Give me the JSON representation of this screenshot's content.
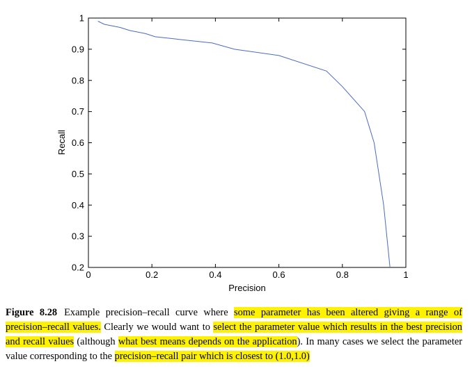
{
  "chart_data": {
    "type": "line",
    "xlabel": "Precision",
    "ylabel": "Recall",
    "xlim": [
      0,
      1
    ],
    "ylim": [
      0.2,
      1
    ],
    "x_ticks": [
      "0",
      "0.2",
      "0.4",
      "0.6",
      "0.8",
      "1"
    ],
    "y_ticks": [
      "0.2",
      "0.3",
      "0.4",
      "0.5",
      "0.6",
      "0.7",
      "0.8",
      "0.9",
      "1"
    ],
    "grid": false,
    "line_color": "#4a6bbf",
    "series": [
      {
        "x": [
          0.03,
          0.05,
          0.1,
          0.13,
          0.18,
          0.21,
          0.39,
          0.46,
          0.6,
          0.75,
          0.8,
          0.87,
          0.9,
          0.93,
          0.95
        ],
        "y": [
          0.99,
          0.98,
          0.97,
          0.96,
          0.95,
          0.94,
          0.92,
          0.9,
          0.88,
          0.83,
          0.78,
          0.7,
          0.6,
          0.4,
          0.2
        ]
      }
    ]
  },
  "caption": {
    "label": "Figure 8.28",
    "parts": [
      {
        "text": "Example precision–recall curve where ",
        "hl": false
      },
      {
        "text": "some parameter has been altered giving a range of precision–recall values.",
        "hl": true
      },
      {
        "text": " Clearly we would want to ",
        "hl": false
      },
      {
        "text": "select the parameter value which results in the best precision and recall values",
        "hl": true
      },
      {
        "text": " (although ",
        "hl": false
      },
      {
        "text": "what best means depends on the application",
        "hl": true
      },
      {
        "text": "). In many cases we select the parameter value corresponding to the ",
        "hl": false
      },
      {
        "text": "precision–recall pair which is closest to (1.0,1.0)",
        "hl": true
      }
    ],
    "highlight_color": "#fff200"
  }
}
